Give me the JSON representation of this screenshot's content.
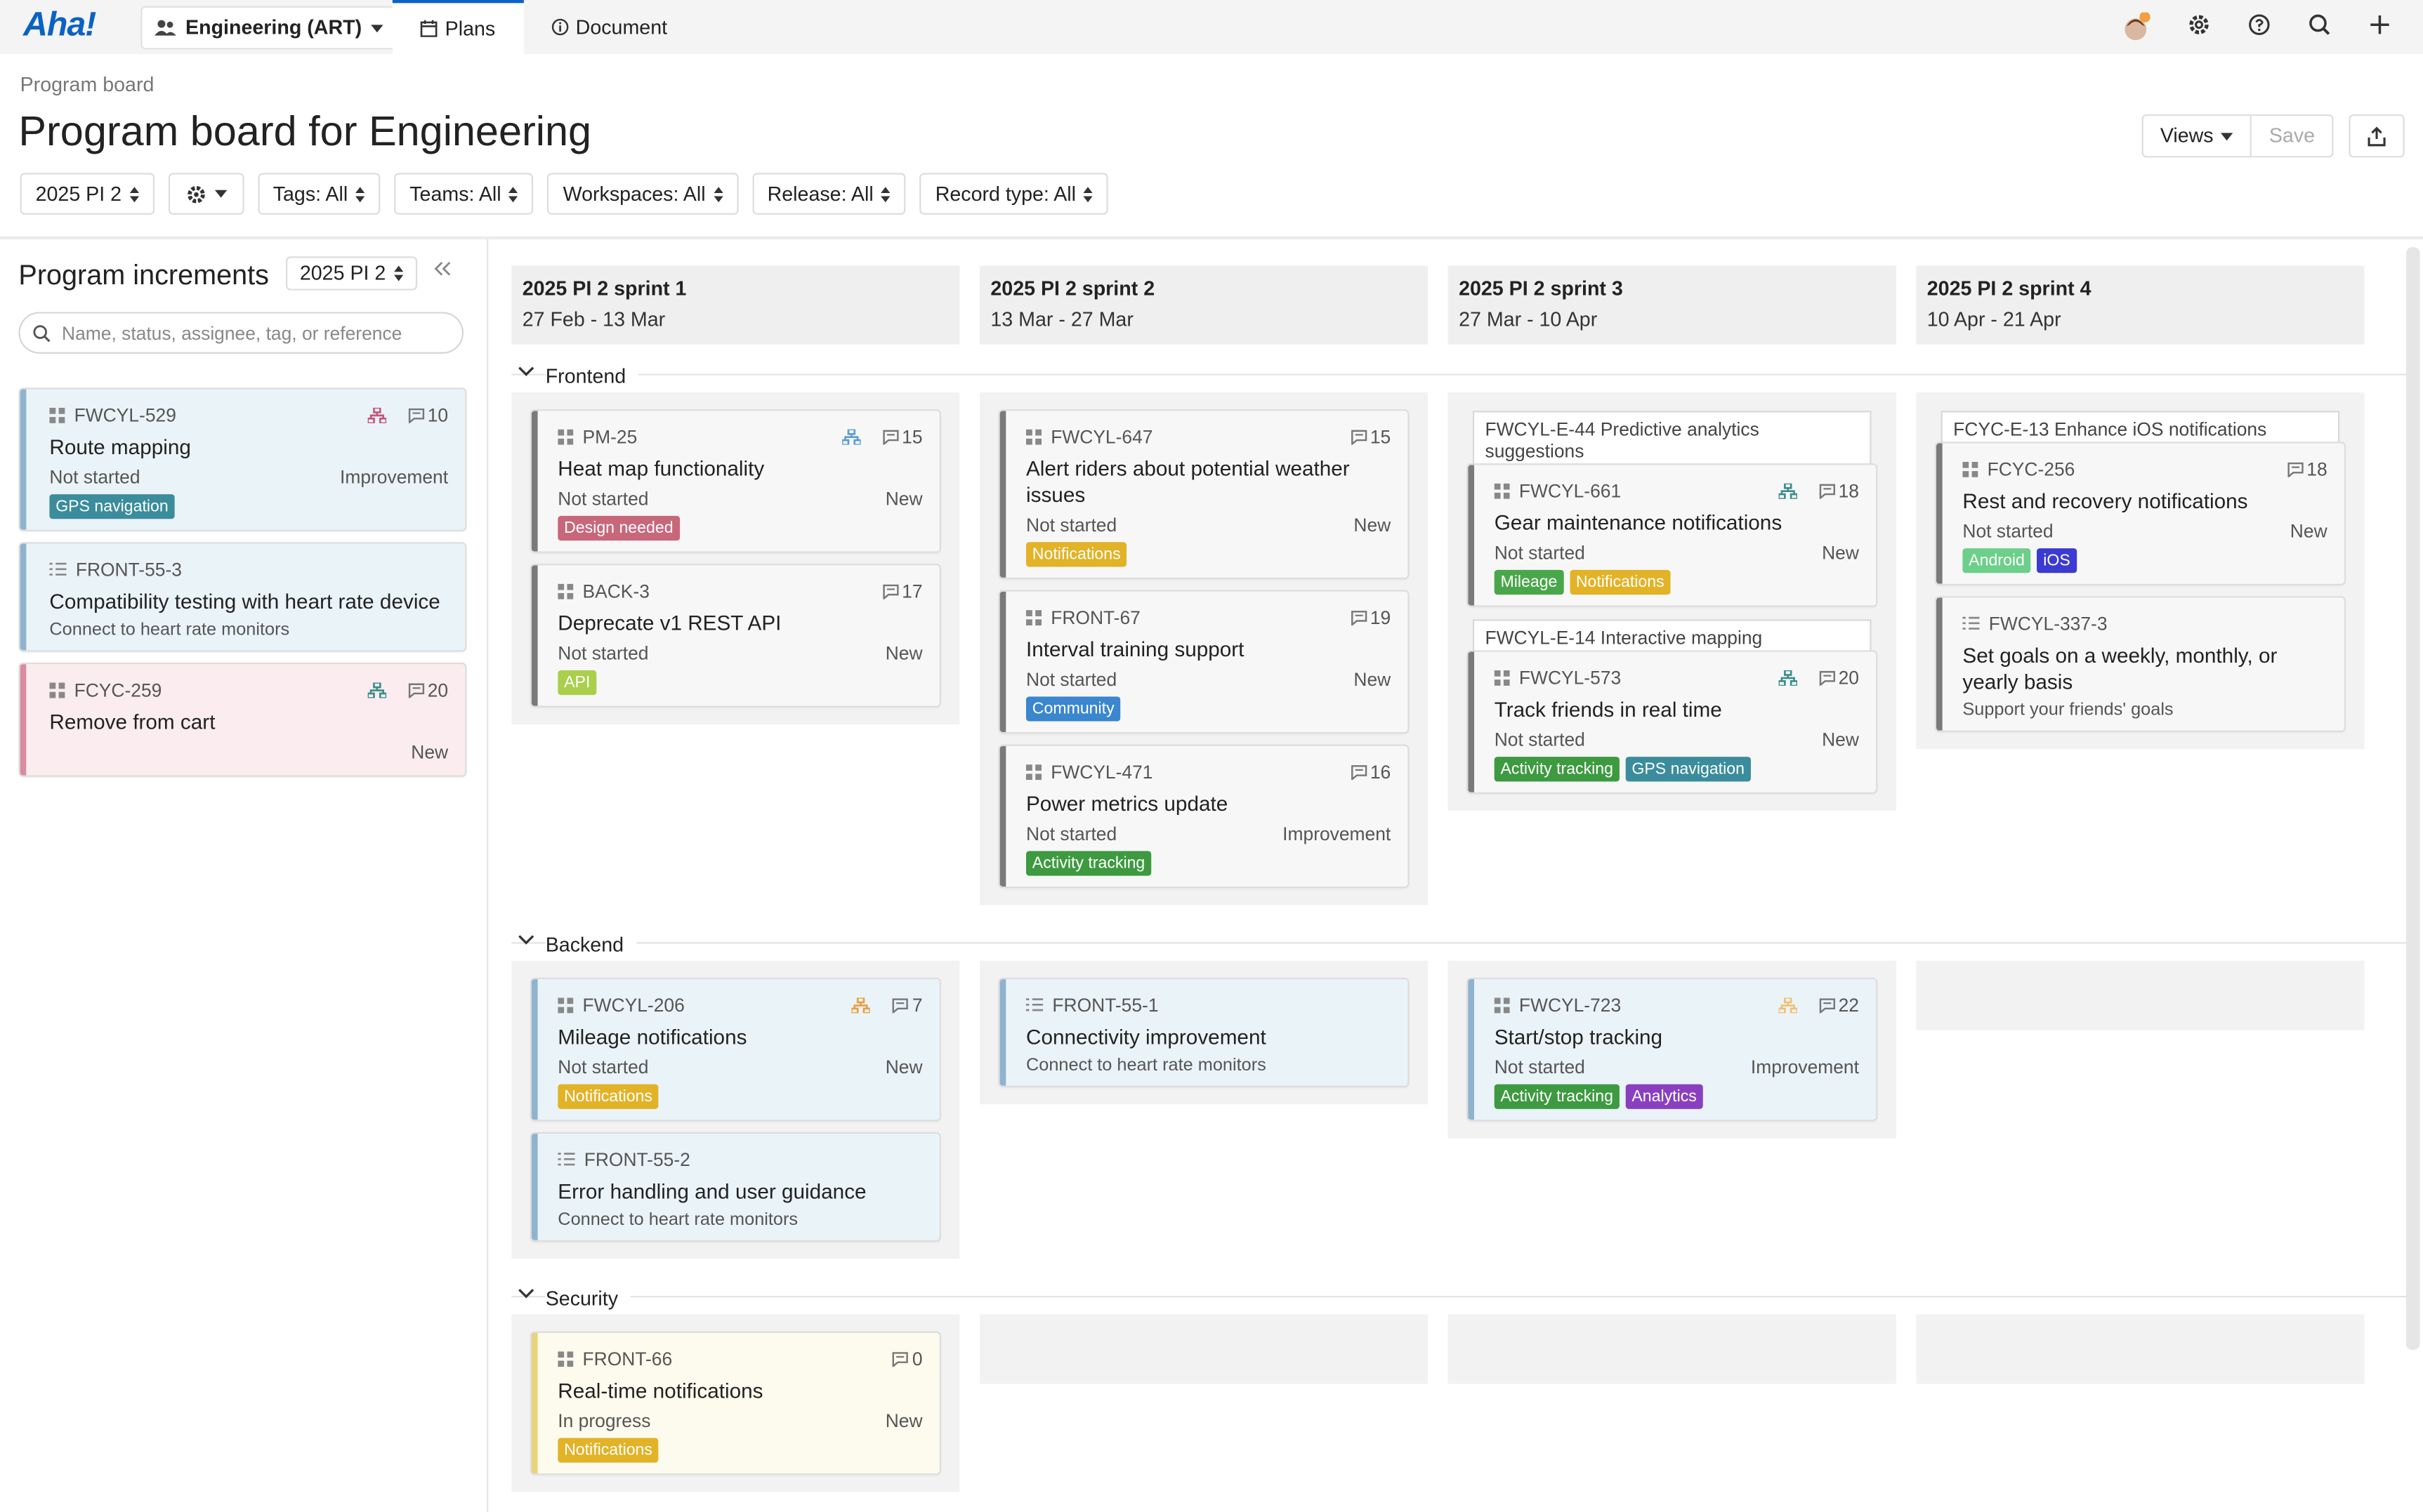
{
  "nav": {
    "logo": "Aha!",
    "workspace": "Engineering (ART)",
    "tabs": [
      "Plans",
      "Document"
    ]
  },
  "header": {
    "breadcrumb": "Program board",
    "title": "Program board for Engineering",
    "views": "Views",
    "save": "Save",
    "filters": [
      "2025 PI 2",
      "Tags: All",
      "Teams: All",
      "Workspaces: All",
      "Release: All",
      "Record type: All"
    ]
  },
  "sidebar": {
    "title": "Program increments",
    "increment": "2025 PI 2",
    "search_placeholder": "Name, status, assignee, tag, or reference",
    "cards": [
      {
        "icon": "feature",
        "ref": "FWCYL-529",
        "title": "Route mapping",
        "status": "Not started",
        "kind": "Improvement",
        "comments": "10",
        "dependency": "#c0577a",
        "stripe": "#8fb3cf",
        "bg": "#eaf3f8",
        "tags": [
          {
            "name": "GPS navigation",
            "color": "#3b8c9c"
          }
        ]
      },
      {
        "icon": "requirement",
        "ref": "FRONT-55-3",
        "title": "Compatibility testing with heart rate device",
        "subtitle": "Connect to heart rate monitors",
        "stripe": "#8fb3cf",
        "bg": "#eaf3f8"
      },
      {
        "icon": "feature",
        "ref": "FCYC-259",
        "title": "Remove from cart",
        "kind": "New",
        "comments": "20",
        "dependency": "#3b8c8c",
        "stripe": "#d98ca0",
        "bg": "#fbecef"
      }
    ]
  },
  "sprints": [
    {
      "name": "2025 PI 2 sprint 1",
      "dates": "27 Feb - 13 Mar"
    },
    {
      "name": "2025 PI 2 sprint 2",
      "dates": "13 Mar - 27 Mar"
    },
    {
      "name": "2025 PI 2 sprint 3",
      "dates": "27 Mar - 10 Apr"
    },
    {
      "name": "2025 PI 2 sprint 4",
      "dates": "10 Apr - 21 Apr"
    }
  ],
  "rows": [
    {
      "name": "Frontend",
      "cells": [
        [
          {
            "icon": "feature",
            "ref": "PM-25",
            "title": "Heat map functionality",
            "status": "Not started",
            "kind": "New",
            "comments": "15",
            "dependency": "#5b9bd5",
            "stripe": "#7a7a7a",
            "bg": "#f7f7f7",
            "tags": [
              {
                "name": "Design needed",
                "color": "#c8677a"
              }
            ]
          },
          {
            "icon": "feature",
            "ref": "BACK-3",
            "title": "Deprecate v1 REST API",
            "status": "Not started",
            "kind": "New",
            "comments": "17",
            "stripe": "#7a7a7a",
            "bg": "#f7f7f7",
            "tags": [
              {
                "name": "API",
                "color": "#a9cf4c"
              }
            ]
          }
        ],
        [
          {
            "icon": "feature",
            "ref": "FWCYL-647",
            "title": "Alert riders about potential weather issues",
            "status": "Not started",
            "kind": "New",
            "comments": "15",
            "stripe": "#7a7a7a",
            "bg": "#f7f7f7",
            "tags": [
              {
                "name": "Notifications",
                "color": "#e2b227"
              }
            ]
          },
          {
            "icon": "feature",
            "ref": "FRONT-67",
            "title": "Interval training support",
            "status": "Not started",
            "kind": "New",
            "comments": "19",
            "stripe": "#7a7a7a",
            "bg": "#f7f7f7",
            "tags": [
              {
                "name": "Community",
                "color": "#3a86cf"
              }
            ]
          },
          {
            "icon": "feature",
            "ref": "FWCYL-471",
            "title": "Power metrics update",
            "status": "Not started",
            "kind": "Improvement",
            "comments": "16",
            "stripe": "#7a7a7a",
            "bg": "#f7f7f7",
            "tags": [
              {
                "name": "Activity tracking",
                "color": "#3d9a40"
              }
            ]
          }
        ],
        [
          {
            "epic": "FWCYL-E-44 Predictive analytics suggestions",
            "icon": "feature",
            "ref": "FWCYL-661",
            "title": "Gear maintenance notifications",
            "status": "Not started",
            "kind": "New",
            "comments": "18",
            "dependency": "#3b8c8c",
            "stripe": "#7a7a7a",
            "bg": "#f7f7f7",
            "tags": [
              {
                "name": "Mileage",
                "color": "#4aa64a"
              },
              {
                "name": "Notifications",
                "color": "#e2b227"
              }
            ]
          },
          {
            "epic": "FWCYL-E-14 Interactive mapping",
            "icon": "feature",
            "ref": "FWCYL-573",
            "title": "Track friends in real time",
            "status": "Not started",
            "kind": "New",
            "comments": "20",
            "dependency": "#3b8c8c",
            "stripe": "#7a7a7a",
            "bg": "#f7f7f7",
            "tags": [
              {
                "name": "Activity tracking",
                "color": "#3d9a40"
              },
              {
                "name": "GPS navigation",
                "color": "#3b8c9c"
              }
            ]
          }
        ],
        [
          {
            "epic": "FCYC-E-13 Enhance iOS notifications",
            "icon": "feature",
            "ref": "FCYC-256",
            "title": "Rest and recovery notifications",
            "status": "Not started",
            "kind": "New",
            "comments": "18",
            "stripe": "#7a7a7a",
            "bg": "#f7f7f7",
            "tags": [
              {
                "name": "Android",
                "color": "#6ccf8a"
              },
              {
                "name": "iOS",
                "color": "#3b3bcf"
              }
            ]
          },
          {
            "icon": "requirement",
            "ref": "FWCYL-337-3",
            "title": "Set goals on a weekly, monthly, or yearly basis",
            "subtitle": "Support your friends' goals",
            "stripe": "#7a7a7a",
            "bg": "#f7f7f7"
          }
        ]
      ]
    },
    {
      "name": "Backend",
      "cells": [
        [
          {
            "icon": "feature",
            "ref": "FWCYL-206",
            "title": "Mileage notifications",
            "status": "Not started",
            "kind": "New",
            "comments": "7",
            "dependency": "#e8a040",
            "stripe": "#8fb3cf",
            "bg": "#eaf3f8",
            "tags": [
              {
                "name": "Notifications",
                "color": "#e2b227"
              }
            ]
          },
          {
            "icon": "requirement",
            "ref": "FRONT-55-2",
            "title": "Error handling and user guidance",
            "subtitle": "Connect to heart rate monitors",
            "stripe": "#8fb3cf",
            "bg": "#eaf3f8"
          }
        ],
        [
          {
            "icon": "requirement",
            "ref": "FRONT-55-1",
            "title": "Connectivity improvement",
            "subtitle": "Connect to heart rate monitors",
            "stripe": "#8fb3cf",
            "bg": "#eaf3f8"
          }
        ],
        [
          {
            "icon": "feature",
            "ref": "FWCYL-723",
            "title": "Start/stop tracking",
            "status": "Not started",
            "kind": "Improvement",
            "comments": "22",
            "dependency": "#f0c070",
            "stripe": "#8fb3cf",
            "bg": "#eaf3f8",
            "tags": [
              {
                "name": "Activity tracking",
                "color": "#3d9a40"
              },
              {
                "name": "Analytics",
                "color": "#8a3fc0"
              }
            ]
          }
        ],
        []
      ]
    },
    {
      "name": "Security",
      "cells": [
        [
          {
            "icon": "feature",
            "ref": "FRONT-66",
            "title": "Real-time notifications",
            "status": "In progress",
            "kind": "New",
            "comments": "0",
            "stripe": "#e8d27a",
            "bg": "#fdfbee",
            "tags": [
              {
                "name": "Notifications",
                "color": "#e2b227"
              }
            ]
          }
        ],
        [],
        [],
        []
      ]
    }
  ]
}
